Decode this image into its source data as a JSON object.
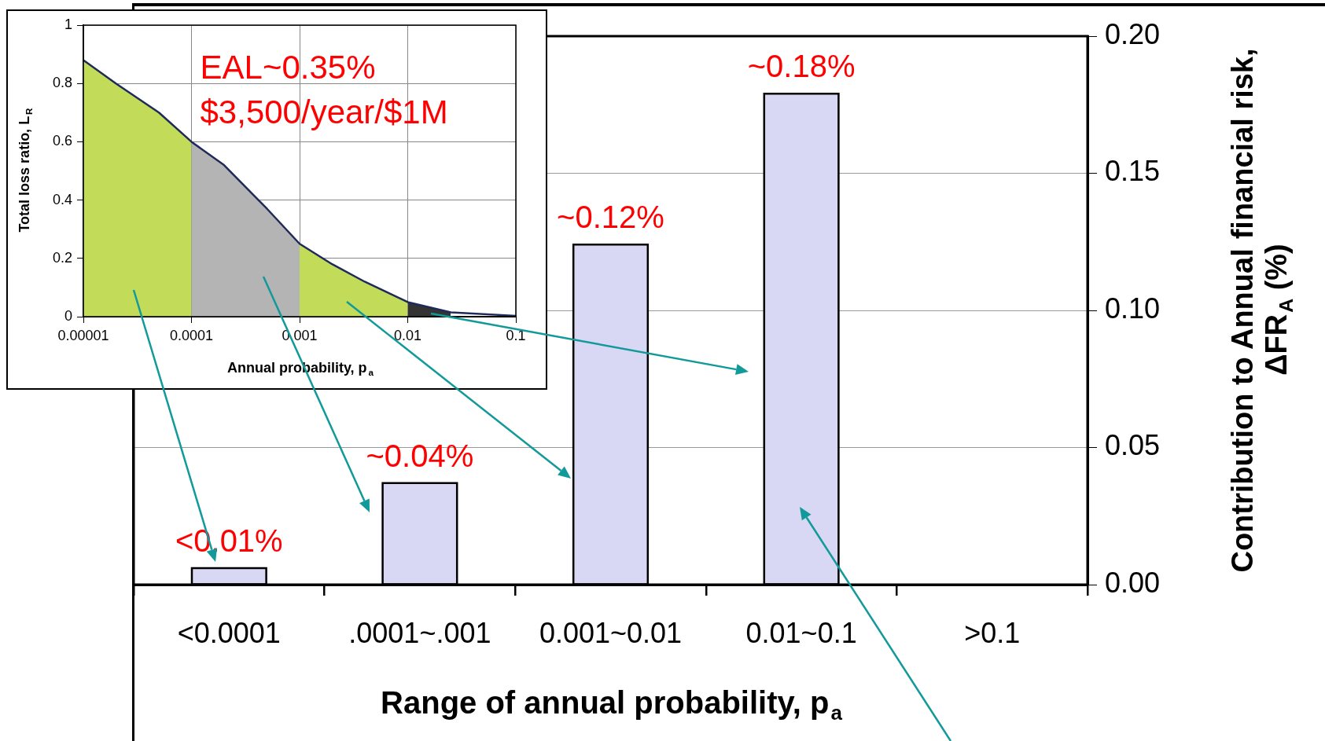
{
  "chart_data": [
    {
      "type": "bar",
      "categories": [
        "<0.0001",
        ".0001~.001",
        "0.001~0.01",
        "0.01~0.1",
        ">0.1"
      ],
      "series": [
        {
          "color": "#d8d8f4",
          "axis": "y2",
          "values": [
            0.006,
            0.037,
            0.124,
            0.179,
            null
          ],
          "value_labels": [
            "<0.01%",
            "~0.04%",
            "~0.12%",
            "~0.18%",
            null
          ]
        }
      ],
      "xlabel": "Range of annual probability, p$_{a}$",
      "y2label": "Contribution to Annual financial risk, ΔFR$_{A}$ (%)",
      "y2lim": [
        0,
        0.2
      ],
      "y2ticks": [
        {
          "value": 0,
          "label": "0.00"
        },
        {
          "value": 0.05,
          "label": "0.05"
        },
        {
          "value": 0.1,
          "label": "0.10"
        },
        {
          "value": 0.15,
          "label": "0.15"
        },
        {
          "value": 0.2,
          "label": "0.20"
        }
      ],
      "grid": "y",
      "legend": false
    },
    {
      "type": "line",
      "xlabel": "Annual probability, p$_{a}$",
      "ylabel": "Total loss ratio, L$_{R}$",
      "log": "x",
      "xlim": [
        1e-05,
        0.1
      ],
      "xticks": [
        {
          "value": 1e-05,
          "label": "0.00001"
        },
        {
          "value": 0.0001,
          "label": "0.0001"
        },
        {
          "value": 0.001,
          "label": "0.001"
        },
        {
          "value": 0.01,
          "label": "0.01"
        },
        {
          "value": 0.1,
          "label": "0.1"
        }
      ],
      "ylim": [
        0,
        1
      ],
      "yticks": [
        0,
        0.2,
        0.4,
        0.6,
        0.8,
        1
      ],
      "grid": true,
      "legend": false,
      "series": [
        {
          "type": "area",
          "color": "#c2dc5a",
          "x": [
            1e-05,
            2e-05,
            5e-05,
            0.0001
          ],
          "values": [
            0.88,
            0.8,
            0.7,
            0.6
          ]
        },
        {
          "type": "area",
          "color": "#b4b4b4",
          "x": [
            0.0001,
            0.0002,
            0.0005,
            0.001
          ],
          "values": [
            0.6,
            0.52,
            0.37,
            0.25
          ]
        },
        {
          "type": "area",
          "color": "#c2dc5a",
          "x": [
            0.001,
            0.002,
            0.004,
            0.01
          ],
          "values": [
            0.25,
            0.18,
            0.12,
            0.05
          ]
        },
        {
          "type": "area",
          "color": "#333333",
          "x": [
            0.01,
            0.025
          ],
          "values": [
            0.05,
            0.015
          ]
        },
        {
          "type": "line",
          "color": "#1f2a5a",
          "x": [
            1e-05,
            2e-05,
            5e-05,
            0.0001,
            0.0002,
            0.0005,
            0.001,
            0.002,
            0.004,
            0.01,
            0.025,
            0.1
          ],
          "values": [
            0.88,
            0.8,
            0.7,
            0.6,
            0.52,
            0.37,
            0.25,
            0.18,
            0.12,
            0.05,
            0.015,
            0.003
          ]
        }
      ],
      "annotations": [
        "EAL~0.35%",
        "$3,500/year/$1M"
      ]
    }
  ]
}
